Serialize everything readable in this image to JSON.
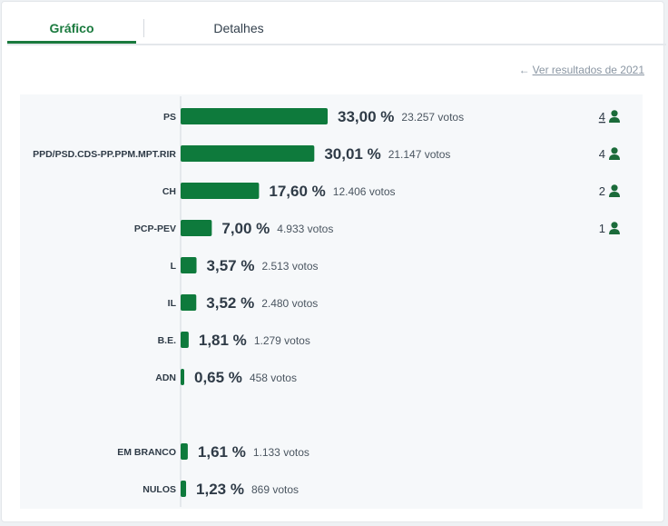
{
  "tabs": [
    {
      "label": "Gráfico",
      "active": true
    },
    {
      "label": "Detalhes",
      "active": false
    }
  ],
  "previous_results": {
    "label": "Ver resultados de 2021",
    "icon": "arrow-left-icon"
  },
  "colors": {
    "bar": "#0e7a3c",
    "accent": "#1a7a3e",
    "seat_icon": "#1b6b3a"
  },
  "chart_data": {
    "type": "bar",
    "orientation": "horizontal",
    "max_value": 33.0,
    "rows": [
      {
        "party": "PS",
        "percent": 33.0,
        "percent_label": "33,00 %",
        "votes_label": "23.257 votos",
        "seats": "4",
        "seats_link": true
      },
      {
        "party": "PPD/PSD.CDS-PP.PPM.MPT.RIR",
        "percent": 30.01,
        "percent_label": "30,01 %",
        "votes_label": "21.147 votos",
        "seats": "4",
        "seats_link": false
      },
      {
        "party": "CH",
        "percent": 17.6,
        "percent_label": "17,60 %",
        "votes_label": "12.406 votos",
        "seats": "2",
        "seats_link": false
      },
      {
        "party": "PCP-PEV",
        "percent": 7.0,
        "percent_label": "7,00 %",
        "votes_label": "4.933 votos",
        "seats": "1",
        "seats_link": false
      },
      {
        "party": "L",
        "percent": 3.57,
        "percent_label": "3,57 %",
        "votes_label": "2.513 votos",
        "seats": null
      },
      {
        "party": "IL",
        "percent": 3.52,
        "percent_label": "3,52 %",
        "votes_label": "2.480 votos",
        "seats": null
      },
      {
        "party": "B.E.",
        "percent": 1.81,
        "percent_label": "1,81 %",
        "votes_label": "1.279 votos",
        "seats": null
      },
      {
        "party": "ADN",
        "percent": 0.65,
        "percent_label": "0,65 %",
        "votes_label": "458 votos",
        "seats": null
      }
    ],
    "other_rows": [
      {
        "party": "EM BRANCO",
        "percent": 1.61,
        "percent_label": "1,61 %",
        "votes_label": "1.133 votos"
      },
      {
        "party": "NULOS",
        "percent": 1.23,
        "percent_label": "1,23 %",
        "votes_label": "869 votos"
      }
    ]
  }
}
